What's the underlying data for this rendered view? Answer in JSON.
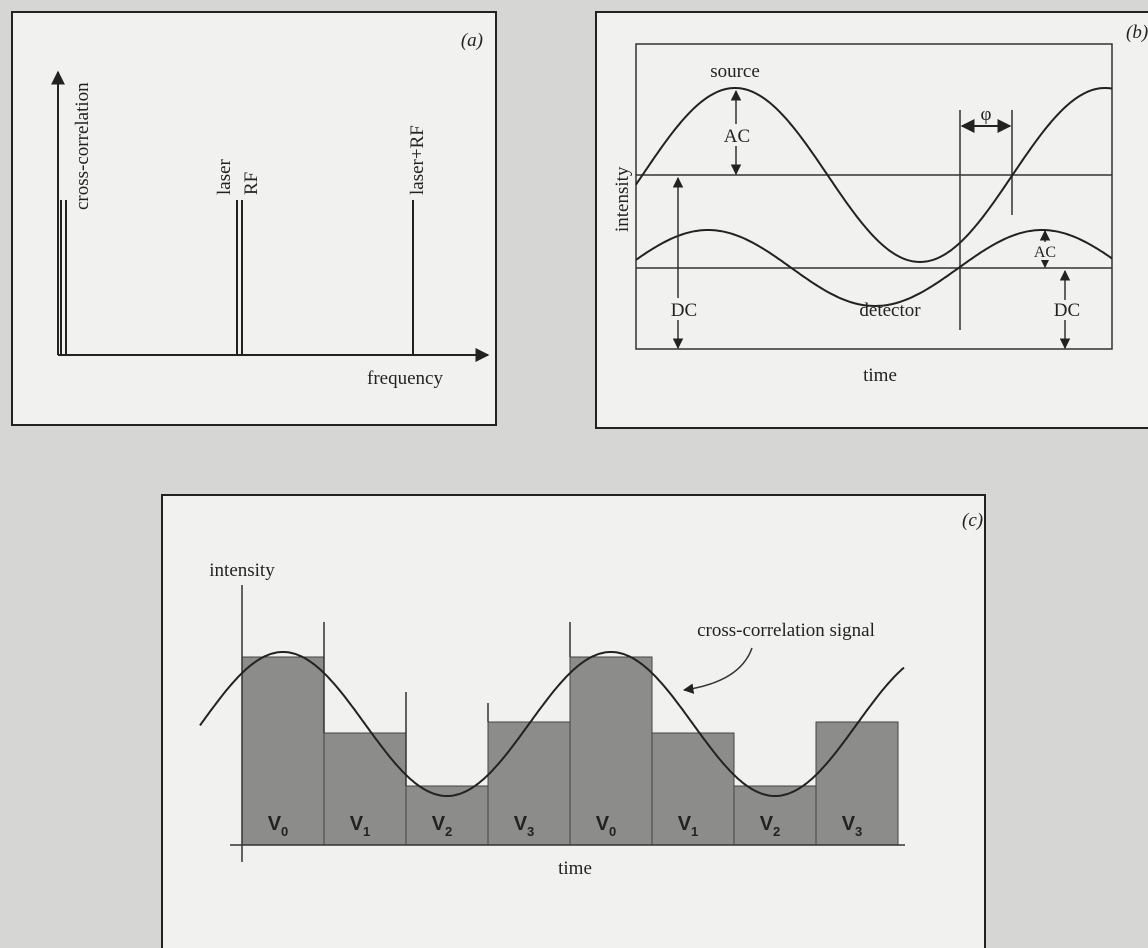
{
  "panel_a": {
    "label": "(a)",
    "y_axis": "cross-correlation",
    "x_axis": "frequency",
    "lines": [
      "laser",
      "RF",
      "laser+RF"
    ]
  },
  "panel_b": {
    "label": "(b)",
    "y_axis": "intensity",
    "x_axis": "time",
    "source": "source",
    "detector": "detector",
    "ac": "AC",
    "dc": "DC",
    "phase": "φ"
  },
  "panel_c": {
    "label": "(c)",
    "y_axis": "intensity",
    "x_axis": "time",
    "signal": "cross-correlation signal",
    "bins": [
      {
        "letter": "V",
        "index": "0"
      },
      {
        "letter": "V",
        "index": "1"
      },
      {
        "letter": "V",
        "index": "2"
      },
      {
        "letter": "V",
        "index": "3"
      },
      {
        "letter": "V",
        "index": "0"
      },
      {
        "letter": "V",
        "index": "1"
      },
      {
        "letter": "V",
        "index": "2"
      },
      {
        "letter": "V",
        "index": "3"
      }
    ]
  }
}
